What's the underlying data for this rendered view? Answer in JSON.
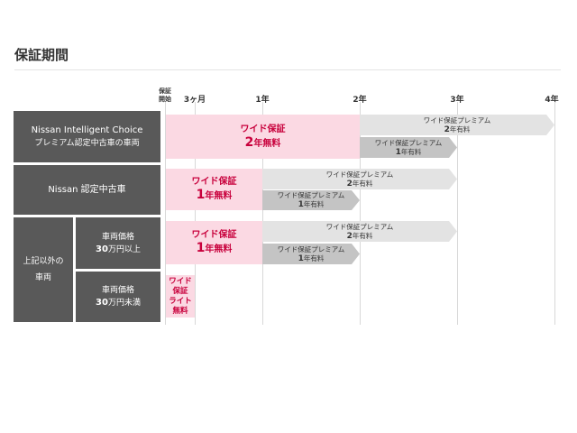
{
  "title": "保証期間",
  "axis": {
    "start": "保証\n開始",
    "ticks": [
      "3ヶ月",
      "1年",
      "2年",
      "3年",
      "4年"
    ]
  },
  "rows": [
    {
      "label1": "Nissan Intelligent Choice",
      "label2": "プレミアム認定中古車の車両",
      "free": {
        "name": "ワイド保証",
        "num": "2",
        "unit": "年無料",
        "years": 2
      },
      "premium2": {
        "name": "ワイド保証プレミアム",
        "num": "2",
        "unit": "年有料"
      },
      "premium1": {
        "name": "ワイド保証プレミアム",
        "num": "1",
        "unit": "年有料"
      }
    },
    {
      "label": "Nissan 認定中古車",
      "free": {
        "name": "ワイド保証",
        "num": "1",
        "unit": "年無料",
        "years": 1
      },
      "premium2": {
        "name": "ワイド保証プレミアム",
        "num": "2",
        "unit": "年有料"
      },
      "premium1": {
        "name": "ワイド保証プレミアム",
        "num": "1",
        "unit": "年有料"
      }
    },
    {
      "group": "上記以外の\n車両",
      "label1": "車両価格",
      "num": "30",
      "label2": "万円以上",
      "free": {
        "name": "ワイド保証",
        "num": "1",
        "unit": "年無料",
        "years": 1
      },
      "premium2": {
        "name": "ワイド保証プレミアム",
        "num": "2",
        "unit": "年有料"
      },
      "premium1": {
        "name": "ワイド保証プレミアム",
        "num": "1",
        "unit": "年有料"
      }
    },
    {
      "label1": "車両価格",
      "num": "30",
      "label2": "万円未満",
      "free": {
        "lines": [
          "ワイド",
          "保証",
          "ライト",
          "無料"
        ],
        "months": 3
      }
    }
  ],
  "colors": {
    "free": "#fbd9e3",
    "free_text": "#c8003c",
    "premium_long": "#e3e3e3",
    "premium_short": "#c4c4c4",
    "label_bg": "#595959"
  }
}
